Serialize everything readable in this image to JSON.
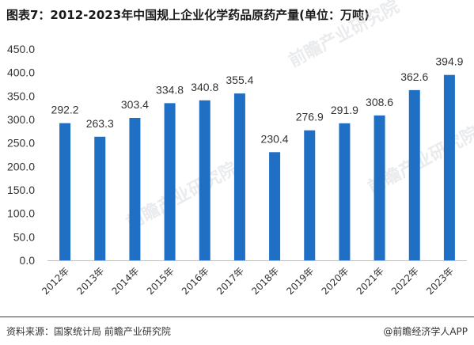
{
  "title": "图表7：2012-2023年中国规上企业化学药品原药产量(单位：万吨)",
  "source": "资料来源：国家统计局 前瞻产业研究院",
  "brand": "@前瞻经济学人APP",
  "watermark": "前瞻产业研究院",
  "chart_data": {
    "type": "bar",
    "categories": [
      "2012年",
      "2013年",
      "2014年",
      "2015年",
      "2016年",
      "2017年",
      "2018年",
      "2019年",
      "2020年",
      "2021年",
      "2022年",
      "2023年"
    ],
    "values": [
      292.2,
      263.3,
      303.4,
      334.8,
      340.8,
      355.4,
      230.4,
      276.9,
      291.9,
      308.6,
      362.6,
      394.9
    ],
    "value_labels": [
      "292.2",
      "263.3",
      "303.4",
      "334.8",
      "340.8",
      "355.4",
      "230.4",
      "276.9",
      "291.9",
      "308.6",
      "362.6",
      "394.9"
    ],
    "yticks": [
      "0.0",
      "50.0",
      "100.0",
      "150.0",
      "200.0",
      "250.0",
      "300.0",
      "350.0",
      "400.0",
      "450.0"
    ],
    "ylim": [
      0,
      450
    ],
    "bar_color": "#1f6fc5",
    "grid": false,
    "legend": "none"
  }
}
